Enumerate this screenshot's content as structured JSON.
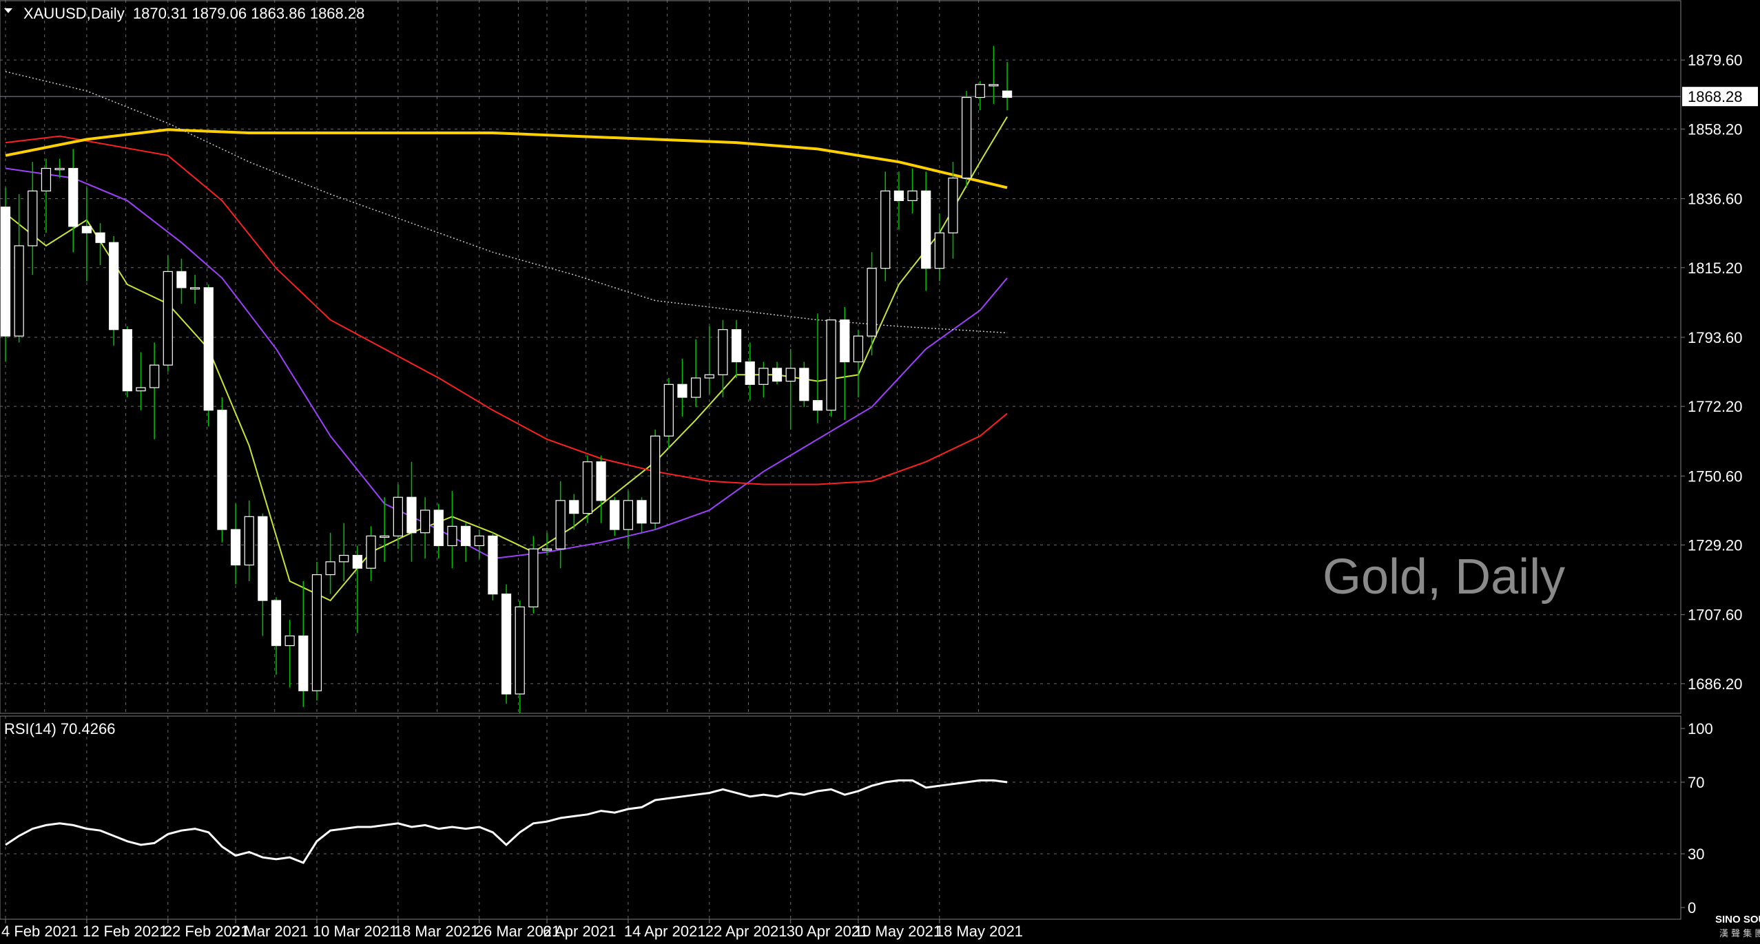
{
  "header": {
    "symbol_line": "XAUUSD,Daily  1870.31 1879.06 1863.86 1868.28"
  },
  "watermark": "Gold, Daily",
  "logo": {
    "name": "SINO SOUND",
    "sub": "漢 聲 集 團"
  },
  "colors": {
    "background": "#000000",
    "grid": "#6a6a6a",
    "bull_body": "#000000",
    "bear_body": "#ffffff",
    "candle_border": "#ffffff",
    "wick": "#00c000",
    "ma_fast": "#c8e632",
    "ma_mid": "#a040ff",
    "ma_slow": "#ff2020",
    "ma_long": "#ffd000",
    "ma_vlong": "#c8c8c8",
    "rsi_line": "#ffffff",
    "price_tag_bg": "#ffffff",
    "price_tag_text": "#000000"
  },
  "chart_data": {
    "type": "candlestick",
    "symbol": "XAUUSD",
    "timeframe": "Daily",
    "ohlc_header": {
      "open": 1870.31,
      "high": 1879.06,
      "low": 1863.86,
      "close": 1868.28
    },
    "current_price": "1868.28",
    "price_axis": {
      "ticks": [
        "1879.60",
        "1858.20",
        "1836.60",
        "1815.20",
        "1793.60",
        "1772.20",
        "1750.60",
        "1729.20",
        "1707.60",
        "1686.20"
      ],
      "range": [
        1677.0,
        1898.0
      ]
    },
    "x_tick_labels": [
      "4 Feb 2021",
      "12 Feb 2021",
      "22 Feb 2021",
      "2 Mar 2021",
      "10 Mar 2021",
      "18 Mar 2021",
      "26 Mar 2021",
      "6 Apr 2021",
      "14 Apr 2021",
      "22 Apr 2021",
      "30 Apr 2021",
      "10 May 2021",
      "18 May 2021"
    ],
    "candles": [
      [
        1834,
        1840,
        1786,
        1794
      ],
      [
        1794,
        1838,
        1792,
        1822
      ],
      [
        1822,
        1848,
        1813,
        1839
      ],
      [
        1839,
        1849,
        1826,
        1846
      ],
      [
        1846,
        1849,
        1843,
        1846
      ],
      [
        1846,
        1852,
        1820,
        1828
      ],
      [
        1828,
        1840,
        1811,
        1826
      ],
      [
        1826,
        1829,
        1816,
        1823
      ],
      [
        1823,
        1825,
        1791,
        1796
      ],
      [
        1796,
        1797,
        1775,
        1777
      ],
      [
        1777,
        1789,
        1771,
        1778
      ],
      [
        1778,
        1792,
        1762,
        1785
      ],
      [
        1785,
        1819,
        1783,
        1814
      ],
      [
        1814,
        1818,
        1804,
        1809
      ],
      [
        1809,
        1813,
        1804,
        1809
      ],
      [
        1809,
        1810,
        1766,
        1771
      ],
      [
        1771,
        1775,
        1730,
        1734
      ],
      [
        1734,
        1742,
        1717,
        1723
      ],
      [
        1723,
        1743,
        1718,
        1738
      ],
      [
        1738,
        1739,
        1701,
        1712
      ],
      [
        1712,
        1713,
        1689,
        1698
      ],
      [
        1698,
        1706,
        1685,
        1701
      ],
      [
        1701,
        1718,
        1679,
        1684
      ],
      [
        1684,
        1724,
        1681,
        1720
      ],
      [
        1720,
        1733,
        1714,
        1724
      ],
      [
        1724,
        1736,
        1718,
        1726
      ],
      [
        1726,
        1729,
        1702,
        1722
      ],
      [
        1722,
        1735,
        1718,
        1732
      ],
      [
        1732,
        1744,
        1724,
        1732
      ],
      [
        1732,
        1748,
        1728,
        1744
      ],
      [
        1744,
        1755,
        1724,
        1733
      ],
      [
        1733,
        1744,
        1725,
        1740
      ],
      [
        1740,
        1742,
        1725,
        1729
      ],
      [
        1729,
        1746,
        1722,
        1735
      ],
      [
        1735,
        1736,
        1724,
        1729
      ],
      [
        1729,
        1734,
        1725,
        1732
      ],
      [
        1732,
        1733,
        1712,
        1714
      ],
      [
        1714,
        1717,
        1680,
        1683
      ],
      [
        1683,
        1712,
        1677,
        1710
      ],
      [
        1710,
        1732,
        1708,
        1728
      ],
      [
        1728,
        1733,
        1726,
        1728
      ],
      [
        1728,
        1749,
        1722,
        1743
      ],
      [
        1743,
        1745,
        1734,
        1739
      ],
      [
        1739,
        1757,
        1736,
        1755
      ],
      [
        1755,
        1757,
        1736,
        1743
      ],
      [
        1743,
        1744,
        1732,
        1734
      ],
      [
        1734,
        1746,
        1728,
        1743
      ],
      [
        1743,
        1744,
        1733,
        1736
      ],
      [
        1736,
        1765,
        1734,
        1763
      ],
      [
        1763,
        1781,
        1759,
        1779
      ],
      [
        1779,
        1787,
        1769,
        1775
      ],
      [
        1775,
        1793,
        1772,
        1781
      ],
      [
        1781,
        1797,
        1776,
        1782
      ],
      [
        1782,
        1799,
        1775,
        1796
      ],
      [
        1796,
        1799,
        1781,
        1786
      ],
      [
        1786,
        1792,
        1774,
        1779
      ],
      [
        1779,
        1786,
        1775,
        1784
      ],
      [
        1784,
        1786,
        1779,
        1780
      ],
      [
        1780,
        1790,
        1765,
        1784
      ],
      [
        1784,
        1786,
        1772,
        1774
      ],
      [
        1774,
        1801,
        1767,
        1771
      ],
      [
        1771,
        1799,
        1769,
        1799
      ],
      [
        1799,
        1803,
        1768,
        1786
      ],
      [
        1786,
        1796,
        1775,
        1794
      ],
      [
        1794,
        1820,
        1788,
        1815
      ],
      [
        1815,
        1845,
        1811,
        1839
      ],
      [
        1839,
        1845,
        1827,
        1836
      ],
      [
        1836,
        1846,
        1832,
        1839
      ],
      [
        1839,
        1845,
        1808,
        1815
      ],
      [
        1815,
        1832,
        1811,
        1826
      ],
      [
        1826,
        1848,
        1818,
        1843
      ],
      [
        1843,
        1870,
        1840,
        1868
      ],
      [
        1868,
        1873,
        1864,
        1872
      ],
      [
        1872,
        1884,
        1866,
        1872
      ],
      [
        1870,
        1879,
        1864,
        1868
      ]
    ],
    "rsi": {
      "label": "RSI(14) 70.4266",
      "levels": [
        "100",
        "70",
        "30",
        "0"
      ],
      "range": [
        0,
        100
      ],
      "values": [
        35,
        40,
        44,
        46,
        47,
        46,
        44,
        43,
        40,
        37,
        35,
        36,
        41,
        43,
        44,
        42,
        34,
        29,
        31,
        28,
        27,
        28,
        25,
        37,
        43,
        44,
        45,
        45,
        46,
        47,
        45,
        46,
        44,
        45,
        44,
        45,
        42,
        35,
        42,
        47,
        48,
        50,
        51,
        52,
        54,
        53,
        55,
        56,
        60,
        61,
        62,
        63,
        64,
        66,
        64,
        62,
        63,
        62,
        64,
        63,
        65,
        66,
        63,
        65,
        68,
        70,
        71,
        71,
        67,
        68,
        69,
        70,
        71,
        71,
        70
      ]
    },
    "moving_averages": [
      {
        "color_key": "ma_fast",
        "values": [
          [
            0,
            1832
          ],
          [
            3,
            1822
          ],
          [
            6,
            1830
          ],
          [
            9,
            1810
          ],
          [
            12,
            1804
          ],
          [
            15,
            1790
          ],
          [
            18,
            1760
          ],
          [
            21,
            1718
          ],
          [
            24,
            1712
          ],
          [
            27,
            1727
          ],
          [
            30,
            1733
          ],
          [
            33,
            1738
          ],
          [
            36,
            1733
          ],
          [
            39,
            1727
          ],
          [
            42,
            1735
          ],
          [
            45,
            1745
          ],
          [
            48,
            1755
          ],
          [
            51,
            1768
          ],
          [
            54,
            1782
          ],
          [
            57,
            1782
          ],
          [
            60,
            1780
          ],
          [
            63,
            1782
          ],
          [
            66,
            1810
          ],
          [
            69,
            1826
          ],
          [
            72,
            1848
          ],
          [
            74,
            1862
          ]
        ]
      },
      {
        "color_key": "ma_mid",
        "values": [
          [
            0,
            1846
          ],
          [
            5,
            1843
          ],
          [
            9,
            1836
          ],
          [
            13,
            1823
          ],
          [
            16,
            1812
          ],
          [
            20,
            1790
          ],
          [
            24,
            1763
          ],
          [
            28,
            1742
          ],
          [
            32,
            1734
          ],
          [
            36,
            1725
          ],
          [
            40,
            1727
          ],
          [
            44,
            1730
          ],
          [
            48,
            1734
          ],
          [
            52,
            1740
          ],
          [
            56,
            1752
          ],
          [
            60,
            1762
          ],
          [
            64,
            1772
          ],
          [
            68,
            1790
          ],
          [
            72,
            1802
          ],
          [
            74,
            1812
          ]
        ]
      },
      {
        "color_key": "ma_slow",
        "values": [
          [
            0,
            1854
          ],
          [
            4,
            1856
          ],
          [
            8,
            1853
          ],
          [
            12,
            1850
          ],
          [
            16,
            1836
          ],
          [
            20,
            1815
          ],
          [
            24,
            1799
          ],
          [
            28,
            1790
          ],
          [
            32,
            1781
          ],
          [
            36,
            1771
          ],
          [
            40,
            1762
          ],
          [
            44,
            1756
          ],
          [
            48,
            1752
          ],
          [
            52,
            1749
          ],
          [
            56,
            1748
          ],
          [
            60,
            1748
          ],
          [
            64,
            1749
          ],
          [
            68,
            1755
          ],
          [
            72,
            1763
          ],
          [
            74,
            1770
          ]
        ]
      },
      {
        "color_key": "ma_long",
        "values": [
          [
            0,
            1850
          ],
          [
            6,
            1855
          ],
          [
            12,
            1858
          ],
          [
            18,
            1857
          ],
          [
            24,
            1857
          ],
          [
            30,
            1857
          ],
          [
            36,
            1857
          ],
          [
            42,
            1856
          ],
          [
            48,
            1855
          ],
          [
            54,
            1854
          ],
          [
            60,
            1852
          ],
          [
            66,
            1848
          ],
          [
            70,
            1844
          ],
          [
            74,
            1840
          ]
        ]
      },
      {
        "color_key": "ma_vlong",
        "values": [
          [
            0,
            1876
          ],
          [
            6,
            1870
          ],
          [
            12,
            1860
          ],
          [
            18,
            1848
          ],
          [
            24,
            1838
          ],
          [
            30,
            1829
          ],
          [
            36,
            1820
          ],
          [
            42,
            1813
          ],
          [
            48,
            1805
          ],
          [
            54,
            1802
          ],
          [
            60,
            1799
          ],
          [
            66,
            1797
          ],
          [
            70,
            1796
          ],
          [
            74,
            1795
          ]
        ]
      }
    ]
  }
}
